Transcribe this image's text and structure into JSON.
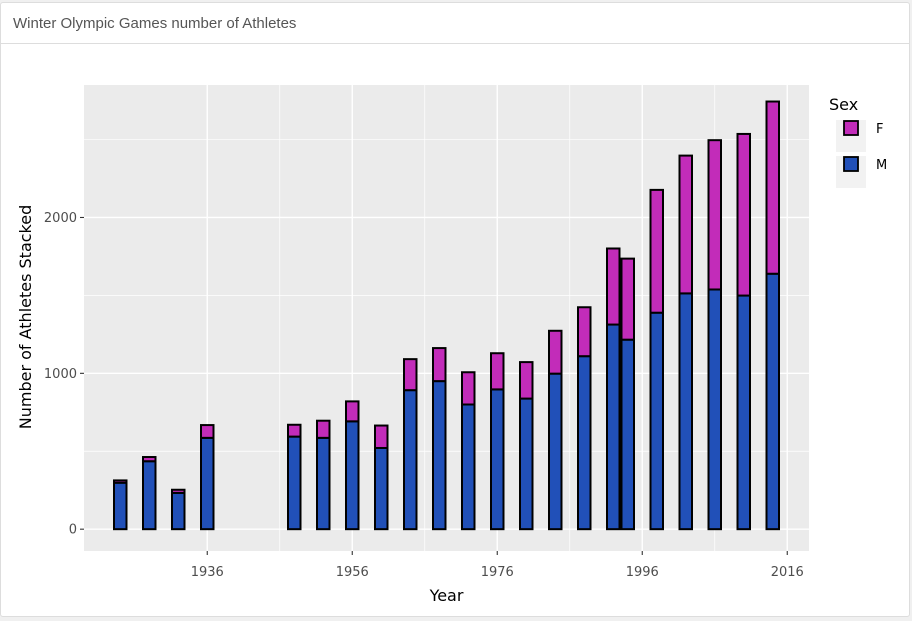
{
  "panel": {
    "title": "Winter Olympic Games number of Athletes"
  },
  "chart_data": {
    "type": "bar",
    "stacked": true,
    "xlabel": "Year",
    "ylabel": "Number of Athletes Stacked",
    "x_ticks": [
      1936,
      1956,
      1976,
      1996,
      2016
    ],
    "y_ticks": [
      0,
      1000,
      2000
    ],
    "xlim": [
      1919,
      2019
    ],
    "ylim": [
      -140,
      2850
    ],
    "grid": true,
    "panel_background": "#ebebeb",
    "legend": {
      "title": "Sex",
      "placement": "right"
    },
    "x": [
      1924,
      1928,
      1932,
      1936,
      1948,
      1952,
      1956,
      1960,
      1964,
      1968,
      1972,
      1976,
      1980,
      1984,
      1988,
      1992,
      1994,
      1998,
      2002,
      2006,
      2010,
      2014
    ],
    "series": [
      {
        "name": "M",
        "color": "#2150b8",
        "values": [
          298,
          436,
          233,
          586,
          594,
          586,
          692,
          521,
          892,
          950,
          800,
          897,
          838,
          998,
          1110,
          1313,
          1216,
          1389,
          1513,
          1538,
          1499,
          1639
        ]
      },
      {
        "name": "F",
        "color": "#c22cb9",
        "values": [
          15,
          27,
          20,
          82,
          76,
          110,
          128,
          144,
          199,
          212,
          207,
          232,
          234,
          275,
          314,
          488,
          520,
          788,
          884,
          958,
          1037,
          1105
        ]
      }
    ]
  }
}
